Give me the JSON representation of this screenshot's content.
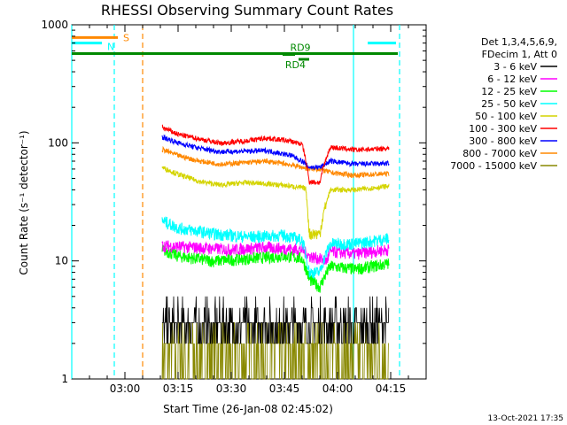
{
  "chart_data": {
    "type": "line",
    "title": "RHESSI Observing Summary Count Rates",
    "xlabel": "Start Time (26-Jan-08 02:45:02)",
    "ylabel": "Count Rate (s⁻¹ detector⁻¹)",
    "yscale": "log",
    "ylim": [
      1,
      1000
    ],
    "xlim": [
      "02:45:02",
      "04:25:00"
    ],
    "y_ticks": [
      "1",
      "10",
      "100",
      "1000"
    ],
    "x_ticks": [
      {
        "label": "03:00",
        "min": 15
      },
      {
        "label": "03:15",
        "min": 30
      },
      {
        "label": "03:30",
        "min": 45
      },
      {
        "label": "03:45",
        "min": 60
      },
      {
        "label": "04:00",
        "min": 75
      },
      {
        "label": "04:15",
        "min": 90
      }
    ],
    "legend_header": [
      "Det 1,3,4,5,6,9,",
      "FDecim 1, Att 0"
    ],
    "legend_placement": "right",
    "footer": "13-Oct-2021 17:35",
    "series": [
      {
        "name": "3 - 6 keV",
        "color": "#000000",
        "points": [
          [
            25.5,
            4.0
          ],
          [
            40,
            3.8
          ],
          [
            55,
            3.6
          ],
          [
            65,
            3.5
          ],
          [
            68.5,
            2.7
          ],
          [
            80,
            2.6
          ],
          [
            89.5,
            2.7
          ]
        ]
      },
      {
        "name": "6 - 12 keV",
        "color": "#ff00ff",
        "points": [
          [
            25.5,
            13.5
          ],
          [
            35,
            13
          ],
          [
            45,
            12.5
          ],
          [
            55,
            13
          ],
          [
            65,
            12.5
          ],
          [
            67,
            11
          ],
          [
            72,
            10
          ],
          [
            73,
            12
          ],
          [
            80,
            11.5
          ],
          [
            89.5,
            12.5
          ]
        ]
      },
      {
        "name": "12 - 25 keV",
        "color": "#00ff00",
        "points": [
          [
            25.5,
            12.5
          ],
          [
            30,
            11
          ],
          [
            40,
            10
          ],
          [
            50,
            10.5
          ],
          [
            60,
            11
          ],
          [
            65,
            10.5
          ],
          [
            67,
            7
          ],
          [
            70,
            6
          ],
          [
            73,
            9
          ],
          [
            80,
            8.5
          ],
          [
            89.5,
            9.5
          ]
        ]
      },
      {
        "name": "25 - 50 keV",
        "color": "#00ffff",
        "points": [
          [
            25.5,
            22
          ],
          [
            30,
            19
          ],
          [
            40,
            17
          ],
          [
            50,
            16
          ],
          [
            60,
            16.5
          ],
          [
            65,
            15
          ],
          [
            67,
            8
          ],
          [
            70,
            8
          ],
          [
            73,
            14
          ],
          [
            80,
            14
          ],
          [
            89.5,
            15.5
          ]
        ]
      },
      {
        "name": "50 - 100 keV",
        "color": "#d4d400",
        "points": [
          [
            25.5,
            62
          ],
          [
            30,
            54
          ],
          [
            36,
            47
          ],
          [
            42,
            44
          ],
          [
            49,
            46
          ],
          [
            55,
            45
          ],
          [
            62,
            43
          ],
          [
            66,
            41
          ],
          [
            67,
            17
          ],
          [
            70,
            17
          ],
          [
            73,
            40
          ],
          [
            80,
            40
          ],
          [
            89.5,
            43
          ]
        ]
      },
      {
        "name": "100 - 300 keV",
        "color": "#ff0000",
        "points": [
          [
            25.5,
            135
          ],
          [
            30,
            118
          ],
          [
            36,
            108
          ],
          [
            42,
            99
          ],
          [
            49,
            104
          ],
          [
            55,
            110
          ],
          [
            62,
            103
          ],
          [
            65,
            97
          ],
          [
            67,
            47
          ],
          [
            70,
            46
          ],
          [
            73,
            92
          ],
          [
            80,
            87
          ],
          [
            89.5,
            90
          ]
        ]
      },
      {
        "name": "300 - 800 keV",
        "color": "#0000ff",
        "points": [
          [
            25.5,
            112
          ],
          [
            30,
            100
          ],
          [
            36,
            90
          ],
          [
            42,
            84
          ],
          [
            49,
            85
          ],
          [
            55,
            86
          ],
          [
            62,
            78
          ],
          [
            65,
            70
          ],
          [
            67,
            62
          ],
          [
            70,
            62
          ],
          [
            73,
            70
          ],
          [
            80,
            66
          ],
          [
            89.5,
            67
          ]
        ]
      },
      {
        "name": "800 - 7000 keV",
        "color": "#ff8800",
        "points": [
          [
            25.5,
            88
          ],
          [
            30,
            78
          ],
          [
            36,
            70
          ],
          [
            42,
            66
          ],
          [
            49,
            68
          ],
          [
            55,
            70
          ],
          [
            62,
            65
          ],
          [
            65,
            62
          ],
          [
            67,
            60
          ],
          [
            70,
            60
          ],
          [
            73,
            56
          ],
          [
            80,
            53
          ],
          [
            89.5,
            55
          ]
        ]
      },
      {
        "name": "7000 - 15000 keV",
        "color": "#888800",
        "points": [
          [
            25.5,
            2.6
          ],
          [
            40,
            2.4
          ],
          [
            55,
            2.4
          ],
          [
            65,
            2.3
          ],
          [
            68.5,
            2.1
          ],
          [
            80,
            2.1
          ],
          [
            89.5,
            2.2
          ]
        ]
      }
    ],
    "flag_bars": [
      {
        "label": "S",
        "color": "#ff8800",
        "x1": 0,
        "x2": 13.0,
        "y": 780
      },
      {
        "label": "N",
        "color": "#00ffff",
        "x1": 0,
        "x2": 8.5,
        "y": 700
      },
      {
        "label": "",
        "color": "#00ffff",
        "x1": 83.5,
        "x2": 91.5,
        "y": 700
      },
      {
        "label": "",
        "color": "#008800",
        "x1": 0,
        "x2": 92,
        "y": 570
      },
      {
        "label": "RD9",
        "color": "#008800",
        "x1": 59.5,
        "x2": 63,
        "y": 560
      },
      {
        "label": "RD4",
        "color": "#008800",
        "x1": 64,
        "x2": 67,
        "y": 510
      }
    ],
    "vlines": [
      {
        "min": 0,
        "color": "#00ffff",
        "style": "solid"
      },
      {
        "min": 12,
        "color": "#00ffff",
        "style": "dashed"
      },
      {
        "min": 20,
        "color": "#ff8800",
        "style": "dashed"
      },
      {
        "min": 79.5,
        "color": "#00ffff",
        "style": "solid"
      },
      {
        "min": 92.5,
        "color": "#00ffff",
        "style": "dashed"
      }
    ]
  }
}
